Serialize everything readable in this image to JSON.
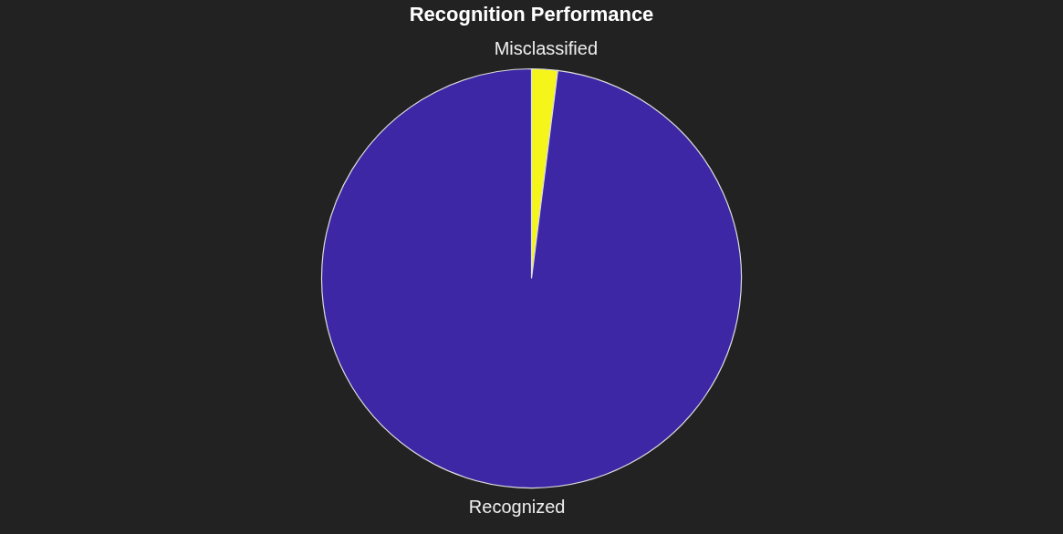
{
  "chart_data": {
    "type": "pie",
    "title": "Recognition Performance",
    "categories": [
      "Misclassified",
      "Recognized"
    ],
    "values": [
      2,
      98
    ],
    "colors": [
      "#f5f51c",
      "#3d27a5"
    ],
    "legend": false
  }
}
